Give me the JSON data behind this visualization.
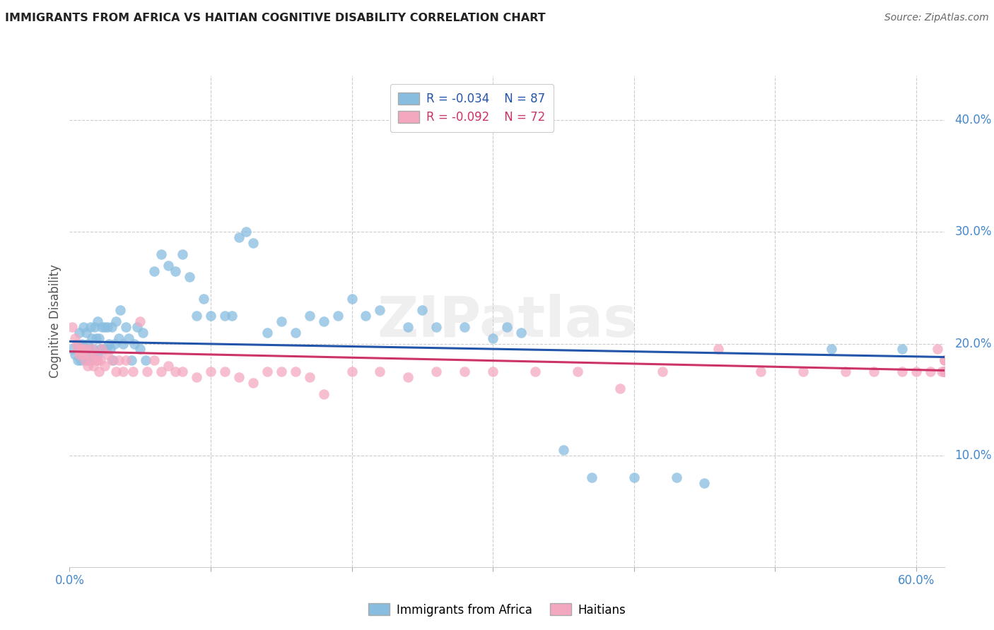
{
  "title": "IMMIGRANTS FROM AFRICA VS HAITIAN COGNITIVE DISABILITY CORRELATION CHART",
  "source": "Source: ZipAtlas.com",
  "xlabel": "",
  "ylabel": "Cognitive Disability",
  "xlim": [
    0.0,
    0.62
  ],
  "ylim": [
    0.0,
    0.44
  ],
  "yticks_right": [
    0.1,
    0.2,
    0.3,
    0.4
  ],
  "ytick_right_labels": [
    "10.0%",
    "20.0%",
    "30.0%",
    "40.0%"
  ],
  "legend_blue_r": "R = -0.034",
  "legend_blue_n": "N = 87",
  "legend_pink_r": "R = -0.092",
  "legend_pink_n": "N = 72",
  "legend_label_blue": "Immigrants from Africa",
  "legend_label_pink": "Haitians",
  "watermark": "ZIPatlas",
  "blue_color": "#88bde0",
  "pink_color": "#f4a8c0",
  "blue_line_color": "#2255aa",
  "pink_line_color": "#cc3366",
  "background_color": "#ffffff",
  "grid_color": "#cccccc",
  "axis_label_color": "#4488cc",
  "title_color": "#222222",
  "blue_scatter_x": [
    0.002,
    0.004,
    0.006,
    0.006,
    0.007,
    0.008,
    0.008,
    0.009,
    0.01,
    0.01,
    0.011,
    0.012,
    0.012,
    0.013,
    0.013,
    0.014,
    0.015,
    0.015,
    0.016,
    0.016,
    0.017,
    0.018,
    0.018,
    0.019,
    0.02,
    0.02,
    0.021,
    0.022,
    0.023,
    0.024,
    0.025,
    0.026,
    0.027,
    0.028,
    0.029,
    0.03,
    0.031,
    0.032,
    0.033,
    0.035,
    0.036,
    0.038,
    0.04,
    0.042,
    0.044,
    0.046,
    0.048,
    0.05,
    0.052,
    0.054,
    0.06,
    0.065,
    0.07,
    0.075,
    0.08,
    0.085,
    0.09,
    0.095,
    0.1,
    0.11,
    0.115,
    0.12,
    0.125,
    0.13,
    0.14,
    0.15,
    0.16,
    0.17,
    0.18,
    0.19,
    0.2,
    0.21,
    0.22,
    0.24,
    0.25,
    0.26,
    0.28,
    0.3,
    0.31,
    0.32,
    0.35,
    0.37,
    0.4,
    0.43,
    0.45,
    0.54,
    0.59
  ],
  "blue_scatter_y": [
    0.195,
    0.19,
    0.2,
    0.185,
    0.21,
    0.195,
    0.185,
    0.2,
    0.195,
    0.215,
    0.185,
    0.195,
    0.21,
    0.185,
    0.2,
    0.195,
    0.215,
    0.19,
    0.205,
    0.185,
    0.195,
    0.215,
    0.19,
    0.205,
    0.19,
    0.22,
    0.205,
    0.195,
    0.215,
    0.195,
    0.215,
    0.195,
    0.215,
    0.2,
    0.195,
    0.215,
    0.185,
    0.2,
    0.22,
    0.205,
    0.23,
    0.2,
    0.215,
    0.205,
    0.185,
    0.2,
    0.215,
    0.195,
    0.21,
    0.185,
    0.265,
    0.28,
    0.27,
    0.265,
    0.28,
    0.26,
    0.225,
    0.24,
    0.225,
    0.225,
    0.225,
    0.295,
    0.3,
    0.29,
    0.21,
    0.22,
    0.21,
    0.225,
    0.22,
    0.225,
    0.24,
    0.225,
    0.23,
    0.215,
    0.23,
    0.215,
    0.215,
    0.205,
    0.215,
    0.21,
    0.105,
    0.08,
    0.08,
    0.08,
    0.075,
    0.195,
    0.195
  ],
  "pink_scatter_x": [
    0.002,
    0.004,
    0.005,
    0.006,
    0.007,
    0.008,
    0.009,
    0.01,
    0.011,
    0.012,
    0.013,
    0.014,
    0.015,
    0.016,
    0.017,
    0.018,
    0.019,
    0.02,
    0.021,
    0.022,
    0.023,
    0.025,
    0.027,
    0.03,
    0.033,
    0.035,
    0.038,
    0.04,
    0.045,
    0.05,
    0.055,
    0.06,
    0.065,
    0.07,
    0.075,
    0.08,
    0.09,
    0.1,
    0.11,
    0.12,
    0.13,
    0.14,
    0.15,
    0.16,
    0.17,
    0.18,
    0.2,
    0.22,
    0.24,
    0.26,
    0.28,
    0.3,
    0.33,
    0.36,
    0.39,
    0.42,
    0.46,
    0.49,
    0.52,
    0.55,
    0.57,
    0.59,
    0.6,
    0.61,
    0.615,
    0.618,
    0.62,
    0.62,
    0.62,
    0.62,
    0.62,
    0.62
  ],
  "pink_scatter_y": [
    0.215,
    0.205,
    0.2,
    0.195,
    0.19,
    0.195,
    0.19,
    0.195,
    0.185,
    0.195,
    0.18,
    0.19,
    0.185,
    0.195,
    0.18,
    0.19,
    0.185,
    0.185,
    0.175,
    0.185,
    0.195,
    0.18,
    0.19,
    0.185,
    0.175,
    0.185,
    0.175,
    0.185,
    0.175,
    0.22,
    0.175,
    0.185,
    0.175,
    0.18,
    0.175,
    0.175,
    0.17,
    0.175,
    0.175,
    0.17,
    0.165,
    0.175,
    0.175,
    0.175,
    0.17,
    0.155,
    0.175,
    0.175,
    0.17,
    0.175,
    0.175,
    0.175,
    0.175,
    0.175,
    0.16,
    0.175,
    0.195,
    0.175,
    0.175,
    0.175,
    0.175,
    0.175,
    0.175,
    0.175,
    0.195,
    0.175,
    0.185,
    0.185,
    0.175,
    0.175,
    0.175,
    0.175
  ],
  "blue_line_x": [
    0.0,
    0.62
  ],
  "blue_line_y": [
    0.202,
    0.188
  ],
  "pink_line_x": [
    0.0,
    0.62
  ],
  "pink_line_y": [
    0.193,
    0.176
  ]
}
